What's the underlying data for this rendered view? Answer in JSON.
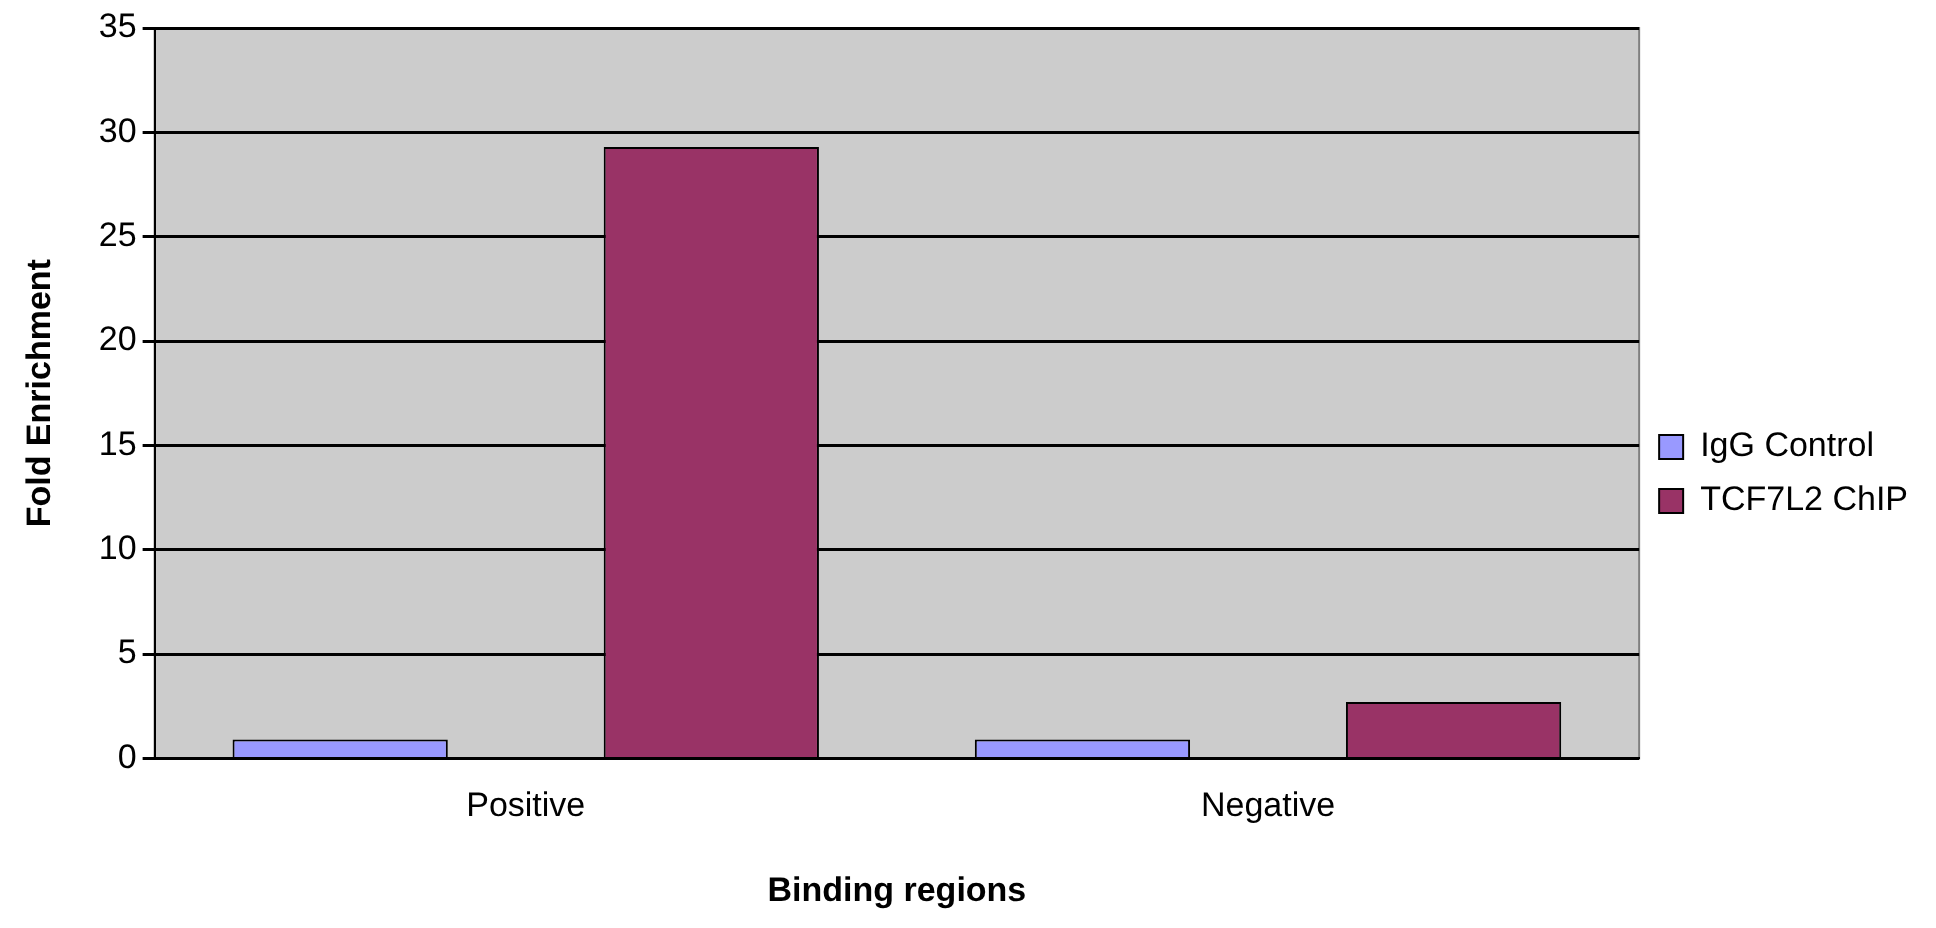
{
  "chart_data": {
    "type": "bar",
    "xlabel": "Binding regions",
    "ylabel": "Fold Enrichment",
    "categories": [
      "Positive",
      "Negative"
    ],
    "series": [
      {
        "name": "IgG Control",
        "color": "#9999ff",
        "values": [
          0.9,
          0.9
        ]
      },
      {
        "name": "TCF7L2 ChIP",
        "color": "#993366",
        "values": [
          29.3,
          2.7
        ]
      }
    ],
    "ylim": [
      0,
      35
    ],
    "yticks": [
      0,
      5,
      10,
      15,
      20,
      25,
      30,
      35
    ],
    "grid": "y",
    "legend": "right"
  }
}
